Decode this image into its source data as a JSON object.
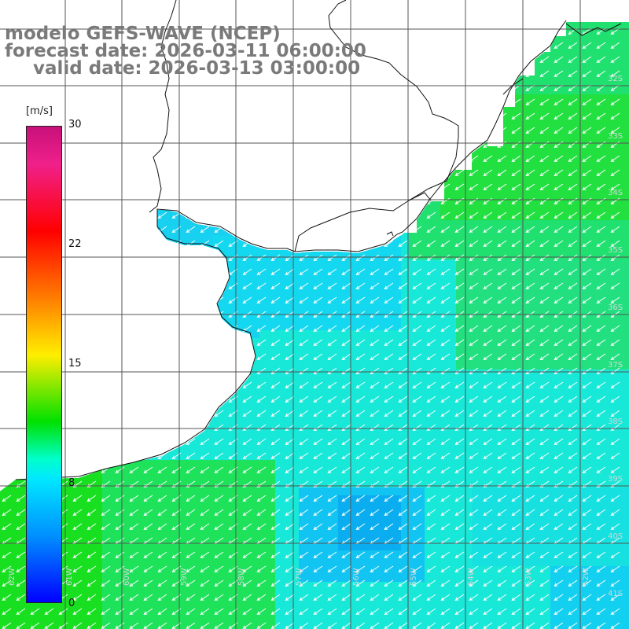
{
  "title": {
    "line1": "modelo GEFS-WAVE (NCEP)",
    "line2": "forecast date: 2026-03-11 06:00:00",
    "line3": "valid date: 2026-03-13 03:00:00"
  },
  "colorbar": {
    "unit": "[m/s]",
    "ticks": [
      "30",
      "22",
      "15",
      "8",
      "0"
    ]
  },
  "map": {
    "lat_labels": [
      "32S",
      "33S",
      "34S",
      "35S",
      "36S",
      "37S",
      "38S",
      "39S",
      "40S",
      "41S"
    ],
    "lon_labels": [
      "62W",
      "61W",
      "60W",
      "59W",
      "58W",
      "57W",
      "56W",
      "55W",
      "54W",
      "53W",
      "52W"
    ],
    "wind_direction": "from north-east",
    "colors": {
      "land": "#ffffff",
      "coastline": "#111111",
      "grid": "#555555",
      "arrows": "#ffffff",
      "title_text": "#7a7a7a"
    }
  }
}
